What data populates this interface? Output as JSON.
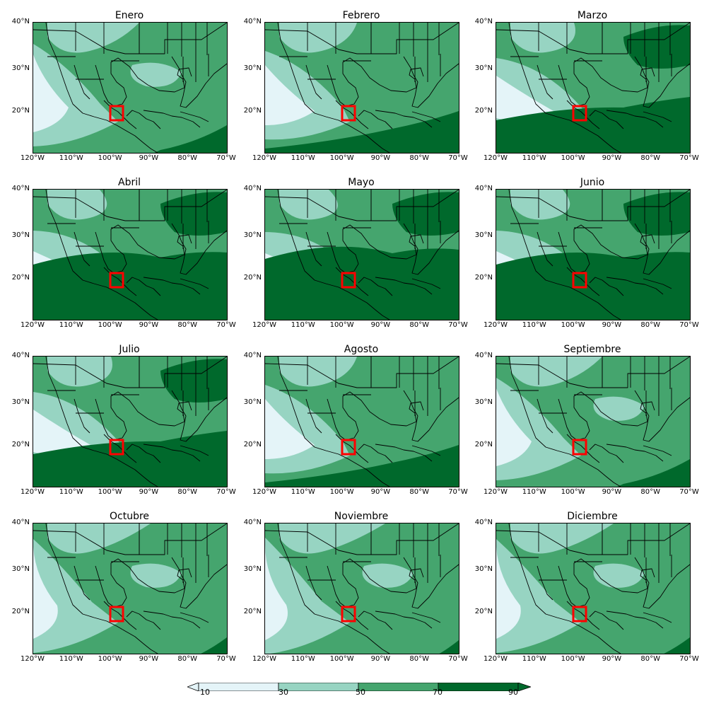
{
  "panels": [
    {
      "month": "Enero"
    },
    {
      "month": "Febrero"
    },
    {
      "month": "Marzo"
    },
    {
      "month": "Abril"
    },
    {
      "month": "Mayo"
    },
    {
      "month": "Junio"
    },
    {
      "month": "Julio"
    },
    {
      "month": "Agosto"
    },
    {
      "month": "Septiembre"
    },
    {
      "month": "Octubre"
    },
    {
      "month": "Noviembre"
    },
    {
      "month": "Diciembre"
    }
  ],
  "lat_labels": [
    "40°N",
    "30°N",
    "20°N"
  ],
  "lon_labels": [
    "120°W",
    "110°W",
    "100°W",
    "90°W",
    "80°W",
    "70°W"
  ],
  "colorbar": {
    "labels": [
      "10",
      "30",
      "50",
      "70",
      "90"
    ],
    "colors": [
      "#e4f4f8",
      "#97d4c2",
      "#45a56e",
      "#00692c"
    ]
  },
  "highlight_color": "#ff0000"
}
